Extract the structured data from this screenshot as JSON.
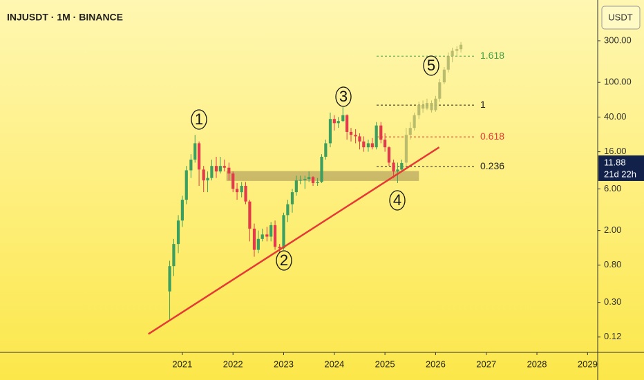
{
  "chart_data": {
    "type": "candlestick",
    "title": "INJUSDT · 1M · BINANCE",
    "currency": "USDT",
    "log_scale": true,
    "xlim": [
      2017.4,
      2029.2
    ],
    "xticks": [
      2021,
      2022,
      2023,
      2024,
      2025,
      2026,
      2027,
      2028,
      2029
    ],
    "ylim": [
      0.08,
      880
    ],
    "yticks": [
      {
        "value": 300,
        "label": "300.00"
      },
      {
        "value": 100,
        "label": "100.00"
      },
      {
        "value": 40,
        "label": "40.00"
      },
      {
        "value": 16,
        "label": "16.00"
      },
      {
        "value": 6,
        "label": "6.00"
      },
      {
        "value": 2,
        "label": "2.00"
      },
      {
        "value": 0.8,
        "label": "0.80"
      },
      {
        "value": 0.3,
        "label": "0.30"
      },
      {
        "value": 0.12,
        "label": "0.12"
      }
    ],
    "up_color": "#3c9e5f",
    "down_color": "#e2394b",
    "candles": {
      "x": [
        2020.75,
        2020.83,
        2020.92,
        2021.0,
        2021.08,
        2021.17,
        2021.25,
        2021.33,
        2021.42,
        2021.5,
        2021.58,
        2021.67,
        2021.75,
        2021.83,
        2021.92,
        2022.0,
        2022.08,
        2022.17,
        2022.25,
        2022.33,
        2022.42,
        2022.5,
        2022.58,
        2022.67,
        2022.75,
        2022.83,
        2022.92,
        2023.0,
        2023.08,
        2023.17,
        2023.25,
        2023.33,
        2023.42,
        2023.5,
        2023.58,
        2023.67,
        2023.75,
        2023.83,
        2023.92,
        2024.0,
        2024.08,
        2024.17,
        2024.25,
        2024.33,
        2024.42,
        2024.5,
        2024.58,
        2024.67,
        2024.75,
        2024.83,
        2024.92,
        2025.0,
        2025.08,
        2025.17,
        2025.25,
        2025.33
      ],
      "open": [
        0.4,
        0.78,
        1.4,
        2.6,
        4.5,
        9.8,
        13,
        20,
        10,
        7.5,
        8,
        11,
        9.5,
        11,
        10.5,
        9,
        6,
        5.5,
        6.5,
        4.3,
        2.1,
        1.2,
        1.6,
        1.8,
        1.7,
        2.3,
        1.3,
        1.25,
        3.0,
        4.0,
        5.5,
        7.5,
        7.6,
        7.8,
        8.2,
        7.0,
        7.2,
        14,
        20,
        38,
        34,
        36,
        42,
        27,
        25,
        24,
        21,
        18,
        20,
        18,
        32,
        22,
        18,
        12,
        9.5,
        10
      ],
      "high": [
        0.9,
        1.6,
        3.0,
        5.0,
        11,
        15,
        25,
        21,
        11,
        9.5,
        13,
        14,
        14,
        13,
        12,
        9.5,
        7,
        7.2,
        7.2,
        4.5,
        2.4,
        2.0,
        2.1,
        2.2,
        2.5,
        2.6,
        1.4,
        3.2,
        4.5,
        6.0,
        8.5,
        8.5,
        8.5,
        9.5,
        8.4,
        8.0,
        15,
        22,
        45,
        42,
        40,
        52,
        43,
        30,
        29,
        26,
        24,
        22,
        23,
        35,
        35,
        26,
        18.5,
        13,
        12,
        13
      ],
      "low": [
        0.19,
        0.6,
        1.1,
        2.2,
        4.0,
        8,
        12,
        6.5,
        5.5,
        5.5,
        7.5,
        8,
        9,
        9.5,
        7.5,
        5.5,
        4.5,
        4.8,
        4,
        1.5,
        1.0,
        1.1,
        1.5,
        1.5,
        1.5,
        1.2,
        1.1,
        1.2,
        2.5,
        3.2,
        5,
        6.8,
        6.0,
        7.2,
        6.5,
        6.5,
        7,
        13,
        18,
        28,
        30,
        35,
        22,
        21,
        20,
        17,
        16,
        16,
        17,
        17,
        20,
        16,
        11,
        8,
        7,
        9.5
      ],
      "close": [
        0.78,
        1.4,
        2.6,
        4.5,
        9.8,
        13,
        20,
        10,
        7.5,
        8,
        11,
        9.5,
        11,
        10.5,
        9,
        6,
        5.5,
        6.5,
        4.3,
        2.1,
        1.2,
        1.6,
        1.8,
        1.7,
        2.3,
        1.3,
        1.25,
        3.0,
        4.0,
        5.5,
        7.5,
        7.6,
        7.8,
        8.2,
        7.0,
        7.2,
        14,
        20,
        38,
        34,
        36,
        42,
        27,
        25,
        24,
        21,
        18,
        20,
        18,
        32,
        22,
        18,
        12,
        9.5,
        10,
        11.88
      ]
    },
    "projection": {
      "color": "#b5b86a",
      "x": [
        2025.42,
        2025.5,
        2025.58,
        2025.67,
        2025.75,
        2025.83,
        2025.92,
        2026.0,
        2026.08,
        2026.17,
        2026.25,
        2026.33,
        2026.42,
        2026.5
      ],
      "open": [
        12,
        25,
        30,
        42,
        55,
        50,
        58,
        48,
        65,
        100,
        140,
        200,
        230,
        240
      ],
      "high": [
        30,
        35,
        45,
        60,
        62,
        65,
        62,
        70,
        110,
        150,
        220,
        250,
        260,
        290
      ],
      "low": [
        11,
        22,
        28,
        38,
        45,
        48,
        45,
        46,
        60,
        95,
        130,
        170,
        200,
        220
      ],
      "close": [
        25,
        30,
        42,
        55,
        50,
        58,
        48,
        65,
        100,
        140,
        200,
        230,
        240,
        270
      ]
    },
    "zone": {
      "x": [
        2021.87,
        2025.67
      ],
      "y": [
        7.4,
        9.6
      ],
      "color": "#b8a860"
    },
    "trendline": {
      "x": [
        2020.33,
        2026.07
      ],
      "y": [
        0.13,
        18
      ],
      "color": "#e53935"
    },
    "fib_levels": [
      {
        "value": 200,
        "label": "1.618",
        "color": "#43a047"
      },
      {
        "value": 54.8,
        "label": "1",
        "color": "#222222"
      },
      {
        "value": 23.7,
        "label": "0.618",
        "color": "#e53935"
      },
      {
        "value": 10.8,
        "label": "0.236",
        "color": "#222222"
      }
    ],
    "waves": [
      "1",
      "2",
      "3",
      "4",
      "5"
    ],
    "last_price": 11.88,
    "countdown": "21d 22h"
  }
}
